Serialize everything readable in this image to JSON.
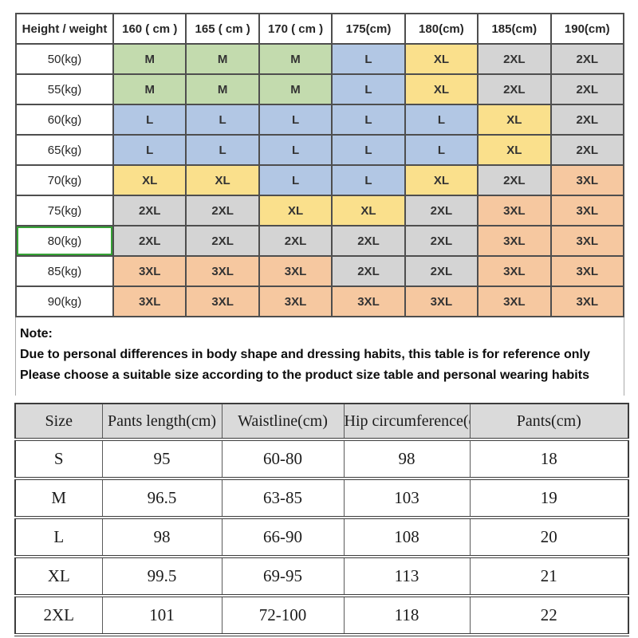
{
  "size_chart": {
    "header": [
      "Height / weight",
      "160 ( cm )",
      "165 ( cm )",
      "170 ( cm )",
      "175(cm)",
      "180(cm)",
      "185(cm)",
      "190(cm)"
    ],
    "colors": {
      "green": "#c3dbae",
      "blue": "#b2c7e4",
      "yellow": "#fae08c",
      "gray": "#d4d4d4",
      "orange": "#f6c8a0",
      "selection_green": "#35a235"
    },
    "rows": [
      {
        "label": "50(kg)",
        "selected": false,
        "cells": [
          {
            "size": "M",
            "color": "green"
          },
          {
            "size": "M",
            "color": "green"
          },
          {
            "size": "M",
            "color": "green"
          },
          {
            "size": "L",
            "color": "blue"
          },
          {
            "size": "XL",
            "color": "yellow"
          },
          {
            "size": "2XL",
            "color": "gray"
          },
          {
            "size": "2XL",
            "color": "gray"
          }
        ]
      },
      {
        "label": "55(kg)",
        "selected": false,
        "cells": [
          {
            "size": "M",
            "color": "green"
          },
          {
            "size": "M",
            "color": "green"
          },
          {
            "size": "M",
            "color": "green"
          },
          {
            "size": "L",
            "color": "blue"
          },
          {
            "size": "XL",
            "color": "yellow"
          },
          {
            "size": "2XL",
            "color": "gray"
          },
          {
            "size": "2XL",
            "color": "gray"
          }
        ]
      },
      {
        "label": "60(kg)",
        "selected": false,
        "cells": [
          {
            "size": "L",
            "color": "blue"
          },
          {
            "size": "L",
            "color": "blue"
          },
          {
            "size": "L",
            "color": "blue"
          },
          {
            "size": "L",
            "color": "blue"
          },
          {
            "size": "L",
            "color": "blue"
          },
          {
            "size": "XL",
            "color": "yellow"
          },
          {
            "size": "2XL",
            "color": "gray"
          }
        ]
      },
      {
        "label": "65(kg)",
        "selected": false,
        "cells": [
          {
            "size": "L",
            "color": "blue"
          },
          {
            "size": "L",
            "color": "blue"
          },
          {
            "size": "L",
            "color": "blue"
          },
          {
            "size": "L",
            "color": "blue"
          },
          {
            "size": "L",
            "color": "blue"
          },
          {
            "size": "XL",
            "color": "yellow"
          },
          {
            "size": "2XL",
            "color": "gray"
          }
        ]
      },
      {
        "label": "70(kg)",
        "selected": false,
        "cells": [
          {
            "size": "XL",
            "color": "yellow"
          },
          {
            "size": "XL",
            "color": "yellow"
          },
          {
            "size": "L",
            "color": "blue"
          },
          {
            "size": "L",
            "color": "blue"
          },
          {
            "size": "XL",
            "color": "yellow"
          },
          {
            "size": "2XL",
            "color": "gray"
          },
          {
            "size": "3XL",
            "color": "orange"
          }
        ]
      },
      {
        "label": "75(kg)",
        "selected": false,
        "cells": [
          {
            "size": "2XL",
            "color": "gray"
          },
          {
            "size": "2XL",
            "color": "gray"
          },
          {
            "size": "XL",
            "color": "yellow"
          },
          {
            "size": "XL",
            "color": "yellow"
          },
          {
            "size": "2XL",
            "color": "gray"
          },
          {
            "size": "3XL",
            "color": "orange"
          },
          {
            "size": "3XL",
            "color": "orange"
          }
        ]
      },
      {
        "label": "80(kg)",
        "selected": true,
        "cells": [
          {
            "size": "2XL",
            "color": "gray"
          },
          {
            "size": "2XL",
            "color": "gray"
          },
          {
            "size": "2XL",
            "color": "gray"
          },
          {
            "size": "2XL",
            "color": "gray"
          },
          {
            "size": "2XL",
            "color": "gray"
          },
          {
            "size": "3XL",
            "color": "orange"
          },
          {
            "size": "3XL",
            "color": "orange"
          }
        ]
      },
      {
        "label": "85(kg)",
        "selected": false,
        "cells": [
          {
            "size": "3XL",
            "color": "orange"
          },
          {
            "size": "3XL",
            "color": "orange"
          },
          {
            "size": "3XL",
            "color": "orange"
          },
          {
            "size": "2XL",
            "color": "gray"
          },
          {
            "size": "2XL",
            "color": "gray"
          },
          {
            "size": "3XL",
            "color": "orange"
          },
          {
            "size": "3XL",
            "color": "orange"
          }
        ]
      },
      {
        "label": "90(kg)",
        "selected": false,
        "cells": [
          {
            "size": "3XL",
            "color": "orange"
          },
          {
            "size": "3XL",
            "color": "orange"
          },
          {
            "size": "3XL",
            "color": "orange"
          },
          {
            "size": "3XL",
            "color": "orange"
          },
          {
            "size": "3XL",
            "color": "orange"
          },
          {
            "size": "3XL",
            "color": "orange"
          },
          {
            "size": "3XL",
            "color": "orange"
          }
        ]
      }
    ]
  },
  "note": {
    "title": "Note:",
    "lines": [
      "Due to personal differences in body shape and dressing habits, this table is for reference only",
      "Please choose a suitable size according to the product size table and personal wearing habits"
    ]
  },
  "measurements": {
    "headers": [
      "Size",
      "Pants length(cm)",
      "Waistline(cm)",
      "Hip circumference(cm)",
      "Pants(cm)"
    ],
    "rows": [
      [
        "S",
        "95",
        "60-80",
        "98",
        "18"
      ],
      [
        "M",
        "96.5",
        "63-85",
        "103",
        "19"
      ],
      [
        "L",
        "98",
        "66-90",
        "108",
        "20"
      ],
      [
        "XL",
        "99.5",
        "69-95",
        "113",
        "21"
      ],
      [
        "2XL",
        "101",
        "72-100",
        "118",
        "22"
      ]
    ]
  }
}
